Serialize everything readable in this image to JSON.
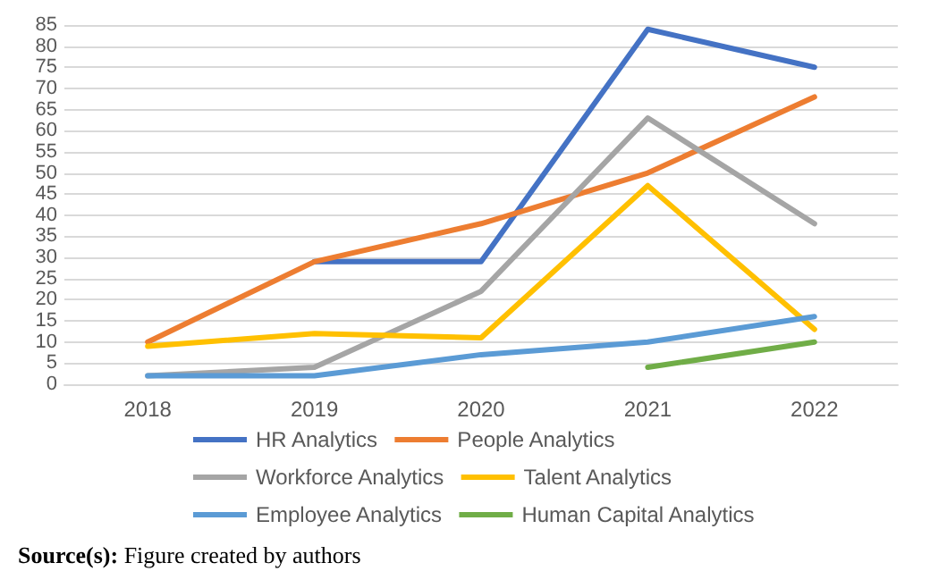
{
  "chart_data": {
    "type": "line",
    "categories": [
      "2018",
      "2019",
      "2020",
      "2021",
      "2022"
    ],
    "series": [
      {
        "name": "HR Analytics",
        "color": "#4472c4",
        "values": [
          null,
          29,
          29,
          84,
          75
        ]
      },
      {
        "name": "People Analytics",
        "color": "#ed7d31",
        "values": [
          10,
          29,
          38,
          50,
          68
        ]
      },
      {
        "name": "Workforce Analytics",
        "color": "#a5a5a5",
        "values": [
          2,
          4,
          22,
          63,
          38
        ]
      },
      {
        "name": "Talent Analytics",
        "color": "#ffc000",
        "values": [
          9,
          12,
          11,
          47,
          13
        ]
      },
      {
        "name": "Employee Analytics",
        "color": "#5b9bd5",
        "values": [
          2,
          2,
          7,
          10,
          16
        ]
      },
      {
        "name": "Human Capital Analytics",
        "color": "#70ad47",
        "values": [
          null,
          null,
          null,
          4,
          10
        ]
      }
    ],
    "ylim": [
      0,
      85
    ],
    "yticks": [
      0,
      5,
      10,
      15,
      20,
      25,
      30,
      35,
      40,
      45,
      50,
      55,
      60,
      65,
      70,
      75,
      80,
      85
    ],
    "grid": "y",
    "legend": "bottom",
    "marker": "none",
    "line_style": "solid",
    "annotations": [
      "Source(s): Figure created by authors"
    ]
  }
}
